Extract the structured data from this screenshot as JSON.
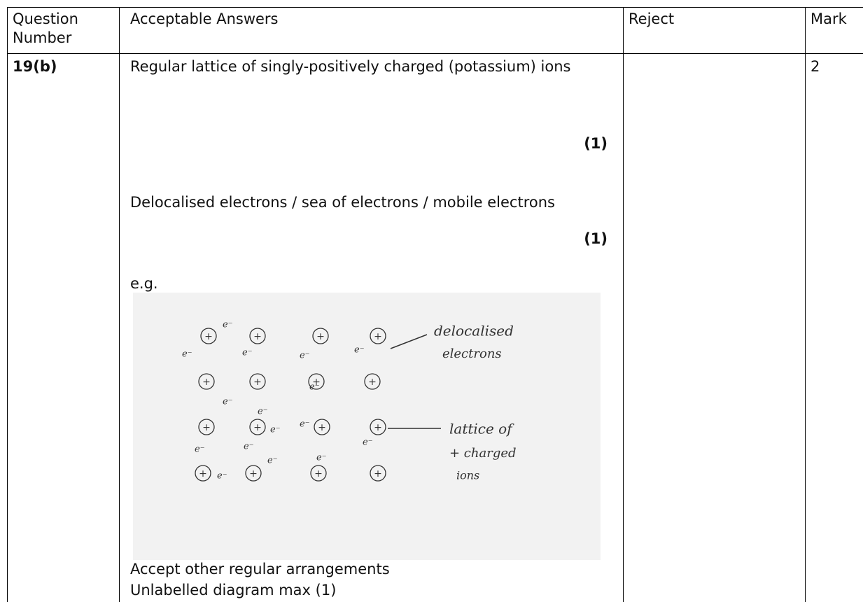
{
  "header": {
    "question_number": "Question Number",
    "acceptable_answers": "Acceptable Answers",
    "reject": "Reject",
    "mark": "Mark"
  },
  "row": {
    "question_number": "19(b)",
    "points": [
      {
        "text": "Regular lattice of singly-positively charged (potassium) ions",
        "mark": "(1)"
      },
      {
        "text": "Delocalised electrons / sea of electrons / mobile electrons",
        "mark": "(1)"
      }
    ],
    "example_label": "e.g.",
    "diagram": {
      "ion_symbol": "+",
      "electron_symbol": "e⁻",
      "label_electrons": [
        "delocalised",
        "electrons"
      ],
      "label_lattice": [
        "lattice of",
        "+ charged",
        "ions"
      ]
    },
    "notes": [
      "Accept other regular arrangements",
      "Unlabelled diagram max (1)"
    ],
    "reject": "",
    "mark": "2"
  }
}
